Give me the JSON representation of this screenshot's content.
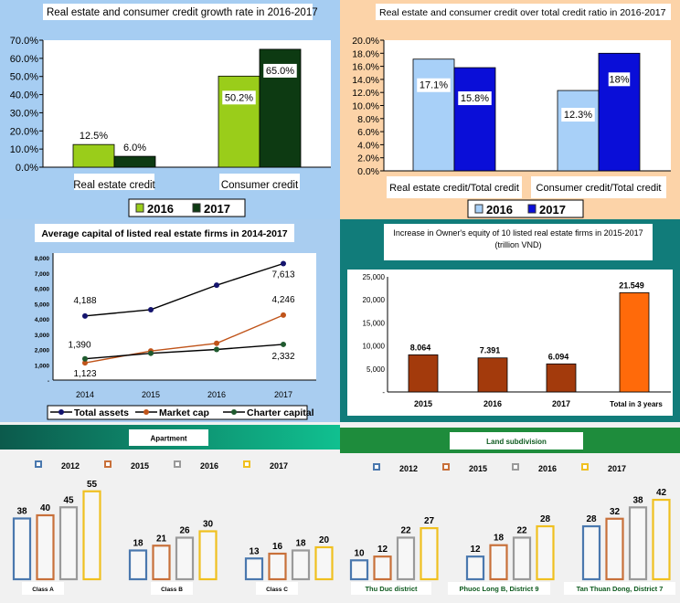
{
  "chart_data": [
    {
      "type": "bar",
      "title": "Real estate and consumer credit growth rate in 2016-2017",
      "categories": [
        "Real estate credit",
        "Consumer credit"
      ],
      "series": [
        {
          "name": "2016",
          "values": [
            12.5,
            50.2
          ],
          "labels": [
            "12.5%",
            "50.2%"
          ],
          "color": "#9acd1a"
        },
        {
          "name": "2017",
          "values": [
            6.0,
            65.0
          ],
          "labels": [
            "6.0%",
            "65.0%"
          ],
          "color": "#0d3a12"
        }
      ],
      "ylim": [
        0,
        70
      ],
      "yticks": [
        "0.0%",
        "10.0%",
        "20.0%",
        "30.0%",
        "40.0%",
        "50.0%",
        "60.0%",
        "70.0%"
      ],
      "legend": "bottom",
      "grid": false
    },
    {
      "type": "bar",
      "title": "Real estate and consumer credit over total credit ratio in 2016-2017",
      "categories": [
        "Real estate credit/Total credit",
        "Consumer credit/Total credit"
      ],
      "series": [
        {
          "name": "2016",
          "values": [
            17.1,
            12.3
          ],
          "labels": [
            "17.1%",
            "12.3%"
          ],
          "color": "#a8d0f8"
        },
        {
          "name": "2017",
          "values": [
            15.8,
            18.0
          ],
          "labels": [
            "15.8%",
            "18%"
          ],
          "color": "#0a0ed8"
        }
      ],
      "ylim": [
        0,
        20
      ],
      "yticks": [
        "0.0%",
        "2.0%",
        "4.0%",
        "6.0%",
        "8.0%",
        "10.0%",
        "12.0%",
        "14.0%",
        "16.0%",
        "18.0%",
        "20.0%"
      ],
      "legend": "bottom",
      "grid": false
    },
    {
      "type": "line",
      "title": "Average capital of listed real estate firms in 2014-2017",
      "x": [
        "2014",
        "2015",
        "2016",
        "2017"
      ],
      "series": [
        {
          "name": "Total assets",
          "values": [
            4188,
            4600,
            6200,
            7613
          ],
          "labels": [
            "4,188",
            "",
            "",
            "7,613"
          ],
          "color": "#14146e"
        },
        {
          "name": "Market cap",
          "values": [
            1123,
            1900,
            2400,
            4246
          ],
          "labels": [
            "1,123",
            "",
            "",
            "4,246"
          ],
          "color": "#c0541a"
        },
        {
          "name": "Charter capital",
          "values": [
            1390,
            1750,
            2000,
            2332
          ],
          "labels": [
            "1,390",
            "",
            "",
            "2,332"
          ],
          "color": "#1f5a2e"
        }
      ],
      "ylim": [
        0,
        8000
      ],
      "yticks": [
        "-",
        "1,000",
        "2,000",
        "3,000",
        "4,000",
        "5,000",
        "6,000",
        "7,000",
        "8,000"
      ],
      "legend": "bottom",
      "grid": false
    },
    {
      "type": "bar",
      "title": "Increase in Owner's equity of 10 listed real estate firms in 2015-2017",
      "subtitle": "(trillion VND)",
      "categories": [
        "2015",
        "2016",
        "2017",
        "Total in 3 years"
      ],
      "values": [
        8064,
        7391,
        6094,
        21549
      ],
      "labels": [
        "8.064",
        "7.391",
        "6.094",
        "21.549"
      ],
      "colors": [
        "#a33a0c",
        "#a33a0c",
        "#a33a0c",
        "#ff6a0a"
      ],
      "ylim": [
        0,
        25000
      ],
      "yticks": [
        "-",
        "5,000",
        "10,000",
        "15,000",
        "20,000",
        "25,000"
      ],
      "grid": false
    },
    {
      "type": "bar",
      "title": "Apartment",
      "categories": [
        "Class A",
        "Class B",
        "Class C"
      ],
      "series": [
        {
          "name": "2012",
          "values": [
            38,
            18,
            13
          ],
          "color": "#4a78ae"
        },
        {
          "name": "2015",
          "values": [
            40,
            21,
            16
          ],
          "color": "#c8703a"
        },
        {
          "name": "2016",
          "values": [
            45,
            26,
            18
          ],
          "color": "#9a9a9a"
        },
        {
          "name": "2017",
          "values": [
            55,
            30,
            20
          ],
          "color": "#f0c020"
        }
      ],
      "legend": "top",
      "grid": false
    },
    {
      "type": "bar",
      "title": "Land subdivision",
      "categories": [
        "Thu Duc district",
        "Phuoc Long B, District 9",
        "Tan Thuan Dong, District 7"
      ],
      "series": [
        {
          "name": "2012",
          "values": [
            10,
            12,
            28
          ],
          "color": "#4a78ae"
        },
        {
          "name": "2015",
          "values": [
            12,
            18,
            32
          ],
          "color": "#c8703a"
        },
        {
          "name": "2016",
          "values": [
            22,
            22,
            38
          ],
          "color": "#9a9a9a"
        },
        {
          "name": "2017",
          "values": [
            27,
            28,
            42
          ],
          "color": "#f0c020"
        }
      ],
      "legend": "top",
      "grid": false
    }
  ]
}
